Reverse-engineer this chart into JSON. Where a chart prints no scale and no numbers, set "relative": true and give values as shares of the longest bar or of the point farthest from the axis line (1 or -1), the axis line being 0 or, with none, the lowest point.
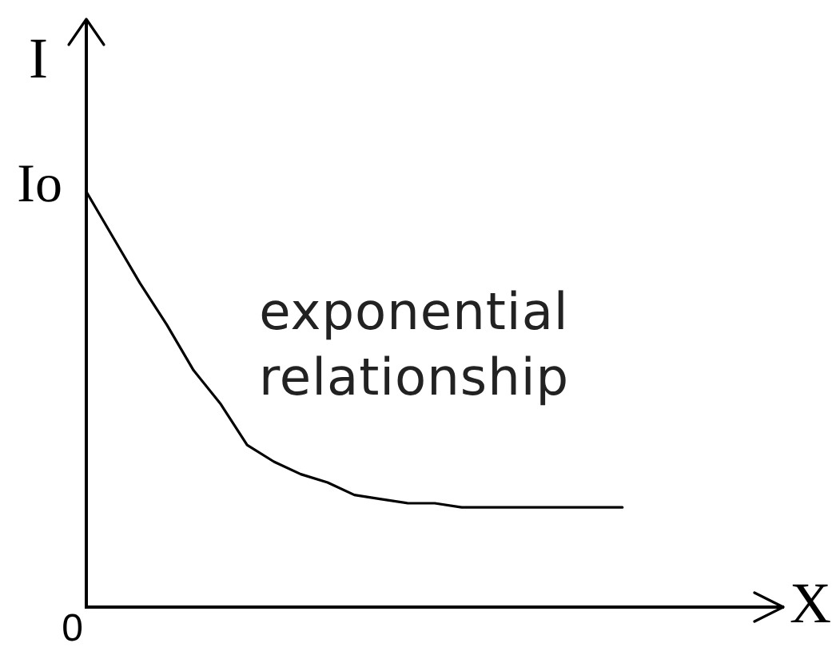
{
  "chart_data": {
    "type": "line",
    "relative": true,
    "xlabel": "X",
    "ylabel": "I",
    "categories": [
      null,
      null,
      null,
      null,
      null,
      null,
      null,
      null,
      null,
      null,
      null,
      null,
      null,
      null,
      null,
      null,
      null,
      null,
      null,
      null,
      null,
      null,
      null,
      null,
      null,
      null,
      null
    ],
    "series": [
      {
        "color": "#000000",
        "values": [
          1.0,
          0.89,
          0.78,
          0.68,
          0.57,
          0.49,
          0.39,
          0.35,
          0.32,
          0.3,
          0.27,
          0.26,
          0.25,
          0.25,
          0.24,
          0.24,
          0.24,
          0.24,
          0.24,
          0.24,
          0.24,
          null,
          null,
          null,
          null,
          null,
          null
        ]
      }
    ],
    "grid": false,
    "legend": false,
    "marker": "none",
    "line_style": "solid",
    "annotations": [
      "Io",
      "exponential relationship",
      "0"
    ]
  }
}
